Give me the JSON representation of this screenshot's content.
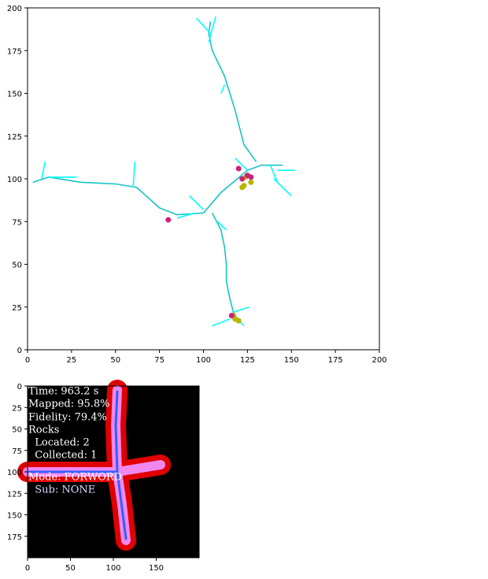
{
  "chart_data": [
    {
      "type": "line",
      "xlim": [
        0,
        200
      ],
      "ylim": [
        0,
        200
      ],
      "xticks": [
        0,
        25,
        50,
        75,
        100,
        125,
        150,
        175,
        200
      ],
      "yticks": [
        0,
        25,
        50,
        75,
        100,
        125,
        150,
        175,
        200
      ],
      "series": [
        {
          "mode": "line",
          "color": "#17c4c4",
          "x": [
            3,
            12,
            30,
            50,
            62,
            75,
            85,
            100,
            null,
            100,
            110,
            125,
            133,
            145,
            null,
            130,
            123,
            118,
            112,
            105,
            103,
            104,
            null,
            105,
            110,
            112,
            113,
            113,
            115,
            117,
            118
          ],
          "values": [
            98,
            101,
            98,
            97,
            95,
            83,
            79,
            80,
            null,
            80,
            92,
            105,
            108,
            108,
            null,
            110,
            120,
            140,
            160,
            175,
            185,
            192,
            null,
            80,
            70,
            60,
            50,
            40,
            30,
            22,
            17
          ]
        },
        {
          "mode": "line",
          "color": "#00ffff",
          "x": [
            103,
            107,
            null,
            104,
            96,
            null,
            142,
            152,
            null,
            140,
            150,
            null,
            60,
            61,
            null,
            8,
            10,
            null,
            12,
            28,
            null,
            95,
            85,
            null,
            100,
            92,
            null,
            108,
            113,
            null,
            117,
            126,
            null,
            115,
            105,
            null,
            118,
            123,
            null,
            138,
            142,
            null,
            125,
            118,
            null,
            112,
            110
          ],
          "values": [
            180,
            195,
            null,
            185,
            194,
            null,
            105,
            105,
            null,
            100,
            90,
            null,
            95,
            110,
            null,
            100,
            110,
            null,
            101,
            101,
            null,
            80,
            77,
            null,
            82,
            90,
            null,
            75,
            70,
            null,
            22,
            25,
            null,
            18,
            14,
            null,
            20,
            14,
            null,
            108,
            98,
            null,
            105,
            112,
            null,
            155,
            150
          ]
        },
        {
          "mode": "scatter",
          "color": "#b5b500",
          "x": [
            123,
            127,
            124,
            122,
            118,
            120,
            117
          ],
          "values": [
            96,
            98,
            101,
            95,
            18,
            17,
            20
          ]
        },
        {
          "mode": "scatter",
          "color": "#cc2277",
          "x": [
            80,
            120,
            122,
            125,
            127,
            116
          ],
          "values": [
            76,
            106,
            100,
            102,
            101,
            20
          ]
        }
      ]
    },
    {
      "type": "image",
      "xlim": [
        0,
        200
      ],
      "ylim": [
        200,
        0
      ],
      "xticks": [
        0,
        50,
        100,
        150
      ],
      "yticks": [
        0,
        25,
        50,
        75,
        100,
        125,
        150,
        175
      ],
      "annotations": [
        "Time: 963.2 s",
        "Mapped: 95.8%",
        "Fidelity: 79.4%",
        "Rocks",
        "  Located: 2",
        "  Collected: 1",
        "Mode: FORWORD",
        "  Sub: NONE"
      ]
    }
  ]
}
